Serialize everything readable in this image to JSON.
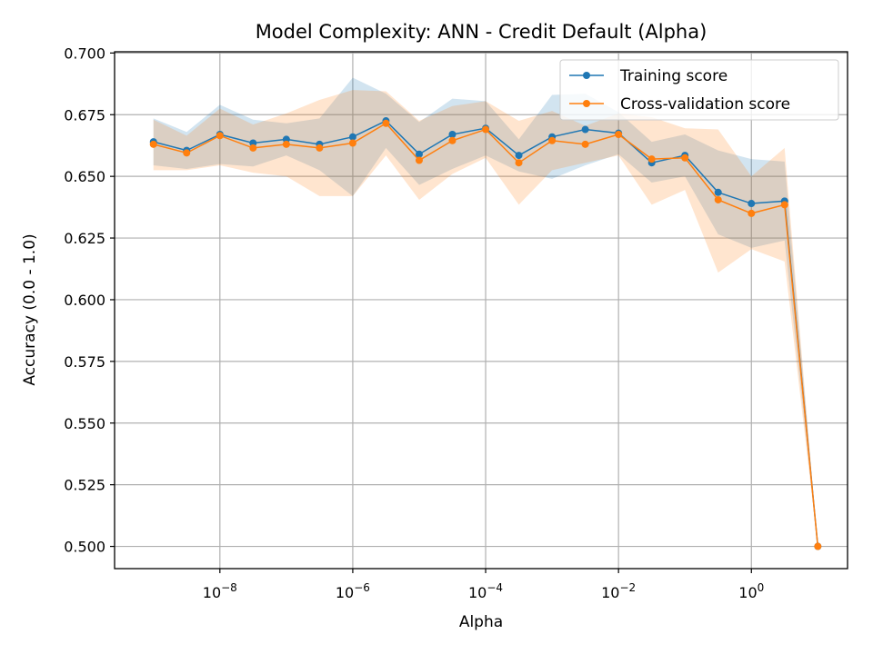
{
  "chart_data": {
    "type": "line",
    "title": "Model Complexity: ANN - Credit Default (Alpha)",
    "xlabel": "Alpha",
    "ylabel": "Accuracy (0.0 - 1.0)",
    "x_scale": "log",
    "xlim": [
      2.6e-10,
      28
    ],
    "ylim": [
      0.491,
      0.7005
    ],
    "grid": true,
    "legend_position": "top-right",
    "x_ticks": [
      {
        "value": 1e-08,
        "base": "10",
        "exp": "−8"
      },
      {
        "value": 1e-06,
        "base": "10",
        "exp": "−6"
      },
      {
        "value": 0.0001,
        "base": "10",
        "exp": "−4"
      },
      {
        "value": 0.01,
        "base": "10",
        "exp": "−2"
      },
      {
        "value": 1,
        "base": "10",
        "exp": "0"
      }
    ],
    "y_ticks": [
      {
        "value": 0.5,
        "label": "0.500"
      },
      {
        "value": 0.525,
        "label": "0.525"
      },
      {
        "value": 0.55,
        "label": "0.550"
      },
      {
        "value": 0.575,
        "label": "0.575"
      },
      {
        "value": 0.6,
        "label": "0.600"
      },
      {
        "value": 0.625,
        "label": "0.625"
      },
      {
        "value": 0.65,
        "label": "0.650"
      },
      {
        "value": 0.675,
        "label": "0.675"
      },
      {
        "value": 0.7,
        "label": "0.700"
      }
    ],
    "x": [
      1e-09,
      3.16e-09,
      1e-08,
      3.16e-08,
      1e-07,
      3.16e-07,
      1e-06,
      3.16e-06,
      1e-05,
      3.16e-05,
      0.0001,
      0.000316,
      0.001,
      0.00316,
      0.01,
      0.0316,
      0.1,
      0.316,
      1,
      3.16,
      10
    ],
    "series": [
      {
        "name": "Training score",
        "color": "#1f77b4",
        "values": [
          0.664,
          0.6605,
          0.667,
          0.6635,
          0.665,
          0.663,
          0.666,
          0.6725,
          0.659,
          0.667,
          0.6695,
          0.6585,
          0.666,
          0.669,
          0.6675,
          0.6555,
          0.6585,
          0.6435,
          0.639,
          0.64,
          0.5
        ],
        "band_upper": [
          0.6735,
          0.668,
          0.679,
          0.673,
          0.6715,
          0.6735,
          0.69,
          0.6835,
          0.672,
          0.6815,
          0.6805,
          0.665,
          0.683,
          0.6835,
          0.676,
          0.664,
          0.667,
          0.6605,
          0.657,
          0.656,
          0.5
        ],
        "band_lower": [
          0.6545,
          0.653,
          0.655,
          0.654,
          0.6585,
          0.6525,
          0.642,
          0.6615,
          0.6465,
          0.653,
          0.6585,
          0.652,
          0.649,
          0.6545,
          0.659,
          0.6475,
          0.65,
          0.6265,
          0.621,
          0.624,
          0.5
        ]
      },
      {
        "name": "Cross-validation score",
        "color": "#ff7f0e",
        "values": [
          0.663,
          0.6595,
          0.6665,
          0.6615,
          0.663,
          0.6615,
          0.6635,
          0.6715,
          0.6565,
          0.6645,
          0.669,
          0.6555,
          0.6645,
          0.663,
          0.667,
          0.657,
          0.6575,
          0.6405,
          0.635,
          0.6385,
          0.5
        ],
        "band_upper": [
          0.673,
          0.6665,
          0.6775,
          0.671,
          0.6755,
          0.681,
          0.685,
          0.6845,
          0.6725,
          0.6785,
          0.6805,
          0.6725,
          0.6765,
          0.6705,
          0.6755,
          0.674,
          0.6695,
          0.669,
          0.65,
          0.6615,
          0.5
        ],
        "band_lower": [
          0.6525,
          0.6525,
          0.6545,
          0.6515,
          0.65,
          0.642,
          0.642,
          0.6585,
          0.6405,
          0.651,
          0.6575,
          0.6385,
          0.6525,
          0.6555,
          0.6585,
          0.6385,
          0.6445,
          0.611,
          0.6205,
          0.6155,
          0.5
        ]
      }
    ]
  }
}
